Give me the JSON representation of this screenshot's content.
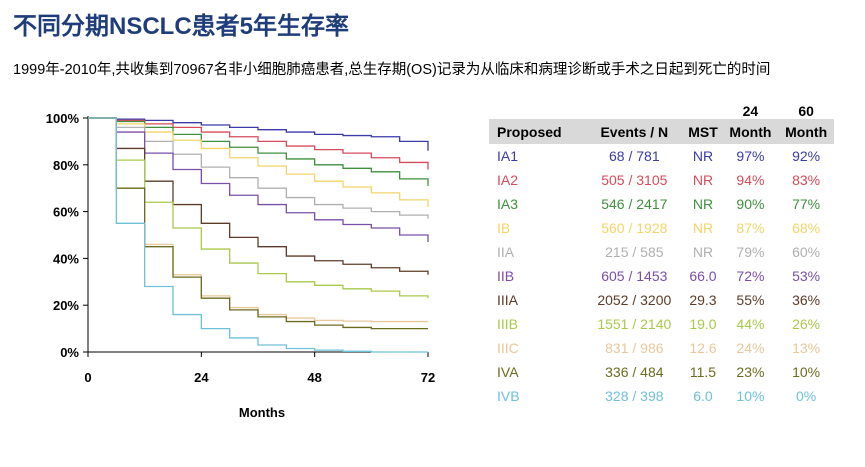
{
  "title": "不同分期NSCLC患者5年生存率",
  "subtitle": "1999年-2010年,共收集到70967名非小细胞肺癌患者,总生存期(OS)记录为从临床和病理诊断或手术之日起到死亡的时间",
  "chart_data": {
    "type": "line",
    "xlabel": "Months",
    "ylabel": "",
    "xlim": [
      0,
      72
    ],
    "ylim": [
      0,
      100
    ],
    "x_ticks": [
      "0",
      "24",
      "48",
      "72"
    ],
    "y_ticks": [
      "0%",
      "20%",
      "40%",
      "60%",
      "80%",
      "100%"
    ],
    "grid": false,
    "x": [
      0,
      6,
      12,
      18,
      24,
      30,
      36,
      42,
      48,
      54,
      60,
      66,
      72
    ],
    "series": [
      {
        "name": "IA1",
        "color": "#3a3aa8",
        "values": [
          100,
          99.5,
          99,
          98,
          97,
          96,
          95,
          94,
          93,
          92.5,
          92,
          90,
          86
        ]
      },
      {
        "name": "IA2",
        "color": "#d64b5a",
        "values": [
          100,
          99,
          97.5,
          96,
          94,
          92,
          90,
          88,
          86.5,
          85,
          83,
          81,
          78
        ]
      },
      {
        "name": "IA3",
        "color": "#3f8f3f",
        "values": [
          100,
          98.5,
          96,
          93,
          90,
          87.5,
          85,
          82.5,
          80,
          78.5,
          77,
          74,
          71
        ]
      },
      {
        "name": "IB",
        "color": "#f2d468",
        "values": [
          100,
          97.5,
          94,
          90.5,
          87,
          83,
          79.5,
          76,
          73,
          70.5,
          68,
          65,
          62
        ]
      },
      {
        "name": "IIA",
        "color": "#b0b0b0",
        "values": [
          100,
          96,
          90,
          84.5,
          79,
          74.5,
          70,
          66,
          63,
          61.5,
          60,
          58.5,
          57
        ]
      },
      {
        "name": "IIB",
        "color": "#7a4fa8",
        "values": [
          100,
          94,
          85,
          78,
          72,
          67,
          63,
          59.5,
          56.5,
          54.5,
          53,
          50,
          47
        ]
      },
      {
        "name": "IIIA",
        "color": "#5c3c28",
        "values": [
          100,
          87,
          73,
          63,
          55,
          49,
          45,
          41,
          39,
          37.5,
          36,
          34.5,
          33
        ]
      },
      {
        "name": "IIIB",
        "color": "#a8c94a",
        "values": [
          100,
          82,
          64,
          53,
          44,
          38,
          33.5,
          30,
          28.5,
          27,
          26,
          24,
          23
        ]
      },
      {
        "name": "IIIC",
        "color": "#e8c79a",
        "values": [
          100,
          70,
          46,
          33,
          24,
          19,
          16,
          14.5,
          13.5,
          13.2,
          13,
          13,
          13
        ]
      },
      {
        "name": "IVA",
        "color": "#6b6b1f",
        "values": [
          100,
          70,
          45,
          32,
          23,
          18,
          15,
          13,
          11.5,
          10.5,
          10,
          10,
          10
        ]
      },
      {
        "name": "IVB",
        "color": "#6ec1d6",
        "values": [
          100,
          55,
          28,
          16,
          10,
          6,
          3,
          1.5,
          0.8,
          0.3,
          0,
          0,
          0
        ]
      }
    ]
  },
  "table": {
    "headers": {
      "proposed": "Proposed",
      "events": "Events / N",
      "mst": "MST",
      "m24_top": "24",
      "m24_bottom": "Month",
      "m60_top": "60",
      "m60_bottom": "Month"
    },
    "rows": [
      {
        "stage": "IA1",
        "events": "68 / 781",
        "mst": "NR",
        "m24": "97%",
        "m60": "92%",
        "color": "#3a3aa8"
      },
      {
        "stage": "IA2",
        "events": "505 / 3105",
        "mst": "NR",
        "m24": "94%",
        "m60": "83%",
        "color": "#d64b5a"
      },
      {
        "stage": "IA3",
        "events": "546 / 2417",
        "mst": "NR",
        "m24": "90%",
        "m60": "77%",
        "color": "#3f8f3f"
      },
      {
        "stage": "IB",
        "events": "560 / 1928",
        "mst": "NR",
        "m24": "87%",
        "m60": "68%",
        "color": "#f2d468"
      },
      {
        "stage": "IIA",
        "events": "215 / 585",
        "mst": "NR",
        "m24": "79%",
        "m60": "60%",
        "color": "#b0b0b0"
      },
      {
        "stage": "IIB",
        "events": "605 / 1453",
        "mst": "66.0",
        "m24": "72%",
        "m60": "53%",
        "color": "#7a4fa8"
      },
      {
        "stage": "IIIA",
        "events": "2052 / 3200",
        "mst": "29.3",
        "m24": "55%",
        "m60": "36%",
        "color": "#5c3c28"
      },
      {
        "stage": "IIIB",
        "events": "1551 / 2140",
        "mst": "19.0",
        "m24": "44%",
        "m60": "26%",
        "color": "#a8c94a"
      },
      {
        "stage": "IIIC",
        "events": "831 / 986",
        "mst": "12.6",
        "m24": "24%",
        "m60": "13%",
        "color": "#e8c79a"
      },
      {
        "stage": "IVA",
        "events": "336 / 484",
        "mst": "11.5",
        "m24": "23%",
        "m60": "10%",
        "color": "#6b6b1f"
      },
      {
        "stage": "IVB",
        "events": "328 / 398",
        "mst": "6.0",
        "m24": "10%",
        "m60": "0%",
        "color": "#6ec1d6"
      }
    ]
  }
}
